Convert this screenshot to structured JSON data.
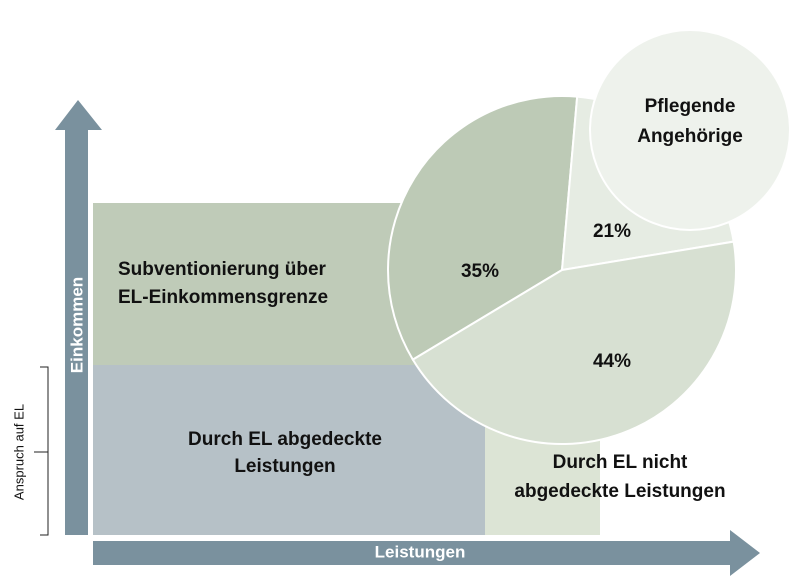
{
  "axes": {
    "y_label": "Einkommen",
    "x_label": "Leistungen",
    "bracket_label": "Anspruch auf EL"
  },
  "regions": [
    {
      "label_lines": [
        "Subventionierung über",
        "EL-Einkommensgrenze"
      ]
    },
    {
      "label_lines": [
        "Durch EL abgedeckte",
        "Leistungen"
      ]
    },
    {
      "label_lines": [
        "Durch EL nicht",
        "abgedeckte Leistungen"
      ]
    }
  ],
  "pie": {
    "type": "pie",
    "values": [
      35,
      21,
      44
    ],
    "value_labels": [
      "35%",
      "21%",
      "44%"
    ],
    "colors": [
      "#bdcab6",
      "#e6ece3",
      "#d7e0d2"
    ]
  },
  "callout": {
    "label_lines": [
      "Pflegende",
      "Angehörige"
    ]
  }
}
